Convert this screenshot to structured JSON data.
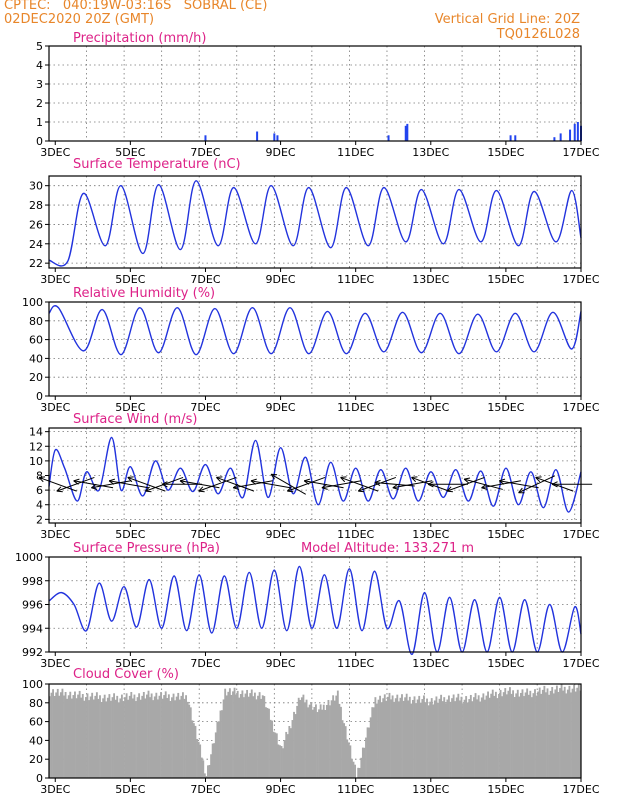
{
  "header": {
    "source_station": "CPTEC:   040:19W-03:16S   SOBRAL (CE)",
    "run_time": "02DEC2020 20Z (GMT)",
    "vertical_grid_note": "Vertical Grid Line: 20Z",
    "model_code": "TQ0126L028"
  },
  "colors": {
    "header": "#e8862a",
    "panel_title": "#dd2288",
    "series_line": "#2233dd",
    "precip_bar": "#2244ee",
    "wind_arrow": "#000000",
    "cloud_fill": "#a8a8a8",
    "grid": "#777777"
  },
  "time_axis": {
    "start": "02DEC 20Z",
    "end": "17DEC",
    "tick_labels": [
      "3DEC",
      "5DEC",
      "7DEC",
      "9DEC",
      "11DEC",
      "13DEC",
      "15DEC",
      "17DEC"
    ]
  },
  "chart_data": [
    {
      "type": "bar",
      "title": "Precipitation (mm/h)",
      "ylim": [
        0,
        5
      ],
      "yticks": [
        0,
        1,
        2,
        3,
        4,
        5
      ],
      "grid": true,
      "x": [
        "7DEC 00Z",
        "8DEC 09Z",
        "8DEC 20Z",
        "8DEC 22Z",
        "11DEC 21Z",
        "12DEC 08Z",
        "12DEC 09Z",
        "15DEC 03Z",
        "15DEC 06Z",
        "16DEC 07Z",
        "16DEC 11Z",
        "16DEC 17Z",
        "16DEC 20Z",
        "16DEC 22Z",
        "17DEC 00Z"
      ],
      "values": [
        0.3,
        0.5,
        0.4,
        0.3,
        0.3,
        0.8,
        0.9,
        0.3,
        0.3,
        0.2,
        0.4,
        0.6,
        0.9,
        1.0,
        0.8
      ]
    },
    {
      "type": "line",
      "title": "Surface Temperature (nC)",
      "ylim": [
        21.5,
        31
      ],
      "yticks": [
        22,
        24,
        26,
        28,
        30
      ],
      "grid": true,
      "series": [
        {
          "x": [
            "02DEC 20Z",
            "03DEC 08Z",
            "03DEC 18Z",
            "04DEC 08Z",
            "04DEC 18Z",
            "05DEC 08Z",
            "05DEC 18Z",
            "06DEC 08Z",
            "06DEC 18Z",
            "07DEC 08Z",
            "07DEC 18Z",
            "08DEC 08Z",
            "08DEC 18Z",
            "09DEC 08Z",
            "09DEC 18Z",
            "10DEC 08Z",
            "10DEC 18Z",
            "11DEC 08Z",
            "11DEC 18Z",
            "12DEC 08Z",
            "12DEC 18Z",
            "13DEC 08Z",
            "13DEC 18Z",
            "14DEC 08Z",
            "14DEC 18Z",
            "15DEC 08Z",
            "15DEC 18Z",
            "16DEC 08Z",
            "16DEC 18Z",
            "17DEC 00Z"
          ],
          "values": [
            22.3,
            22.2,
            29.2,
            23.8,
            30.0,
            23.0,
            30.1,
            23.4,
            30.5,
            23.8,
            29.8,
            24.0,
            30.0,
            23.8,
            29.8,
            23.6,
            29.8,
            23.8,
            29.8,
            24.2,
            29.6,
            24.0,
            29.6,
            24.2,
            29.5,
            23.8,
            29.4,
            24.2,
            29.5,
            24.6
          ]
        }
      ]
    },
    {
      "type": "line",
      "title": "Relative Humidity (%)",
      "ylim": [
        0,
        100
      ],
      "yticks": [
        0,
        20,
        40,
        60,
        80,
        100
      ],
      "grid": true,
      "series": [
        {
          "x": [
            "02DEC 20Z",
            "03DEC 02Z",
            "03DEC 18Z",
            "04DEC 06Z",
            "04DEC 18Z",
            "05DEC 06Z",
            "05DEC 18Z",
            "06DEC 06Z",
            "06DEC 18Z",
            "07DEC 06Z",
            "07DEC 18Z",
            "08DEC 06Z",
            "08DEC 18Z",
            "09DEC 06Z",
            "09DEC 18Z",
            "10DEC 06Z",
            "10DEC 18Z",
            "11DEC 06Z",
            "11DEC 18Z",
            "12DEC 06Z",
            "12DEC 18Z",
            "13DEC 06Z",
            "13DEC 18Z",
            "14DEC 06Z",
            "14DEC 18Z",
            "15DEC 06Z",
            "15DEC 18Z",
            "16DEC 06Z",
            "16DEC 18Z",
            "17DEC 00Z"
          ],
          "values": [
            88,
            94,
            48,
            92,
            44,
            94,
            46,
            94,
            44,
            93,
            45,
            94,
            45,
            94,
            45,
            90,
            45,
            88,
            47,
            89,
            46,
            88,
            45,
            87,
            47,
            88,
            47,
            89,
            50,
            90
          ]
        }
      ]
    },
    {
      "type": "line",
      "title": "Surface Wind (m/s)",
      "ylim": [
        1.5,
        14.5
      ],
      "yticks": [
        2,
        4,
        6,
        8,
        10,
        12,
        14
      ],
      "grid": true,
      "series": [
        {
          "x": [
            "02DEC 20Z",
            "03DEC 00Z",
            "03DEC 06Z",
            "03DEC 14Z",
            "03DEC 20Z",
            "04DEC 04Z",
            "04DEC 12Z",
            "04DEC 18Z",
            "05DEC 00Z",
            "05DEC 08Z",
            "05DEC 16Z",
            "06DEC 00Z",
            "06DEC 08Z",
            "06DEC 16Z",
            "07DEC 00Z",
            "07DEC 08Z",
            "07DEC 16Z",
            "08DEC 00Z",
            "08DEC 08Z",
            "08DEC 16Z",
            "09DEC 00Z",
            "09DEC 08Z",
            "09DEC 16Z",
            "10DEC 00Z",
            "10DEC 08Z",
            "10DEC 16Z",
            "11DEC 00Z",
            "11DEC 08Z",
            "11DEC 16Z",
            "12DEC 00Z",
            "12DEC 08Z",
            "12DEC 16Z",
            "13DEC 00Z",
            "13DEC 08Z",
            "13DEC 16Z",
            "14DEC 00Z",
            "14DEC 08Z",
            "14DEC 16Z",
            "15DEC 00Z",
            "15DEC 08Z",
            "15DEC 16Z",
            "16DEC 00Z",
            "16DEC 08Z",
            "16DEC 16Z",
            "17DEC 00Z"
          ],
          "values": [
            6.5,
            11.5,
            9.0,
            4.5,
            8.5,
            6.0,
            13.2,
            6.0,
            9.2,
            5.2,
            10.0,
            6.0,
            9.0,
            5.8,
            9.5,
            5.5,
            9.0,
            5.0,
            12.8,
            5.0,
            11.8,
            5.5,
            10.5,
            4.0,
            9.8,
            4.5,
            9.0,
            4.5,
            8.8,
            4.8,
            9.0,
            4.5,
            8.5,
            5.0,
            8.8,
            4.5,
            8.6,
            3.8,
            9.0,
            4.0,
            8.5,
            3.6,
            8.8,
            3.0,
            8.5
          ]
        }
      ],
      "wind_arrows_deg_from_east_ccw": [
        160,
        200,
        170,
        190,
        170,
        160,
        200,
        180,
        170,
        200,
        160,
        190,
        170,
        150,
        200,
        170,
        190,
        160,
        200,
        175,
        190,
        160,
        180,
        200,
        165,
        190,
        170,
        205,
        160,
        180
      ]
    },
    {
      "type": "line",
      "title": "Surface Pressure (hPa)",
      "annotation": "Model Altitude: 133.271  m",
      "ylim": [
        992,
        1000
      ],
      "yticks": [
        992,
        994,
        996,
        998,
        1000
      ],
      "grid": true,
      "series": [
        {
          "x": [
            "02DEC 20Z",
            "03DEC 04Z",
            "03DEC 12Z",
            "03DEC 20Z",
            "04DEC 04Z",
            "04DEC 12Z",
            "04DEC 20Z",
            "05DEC 04Z",
            "05DEC 12Z",
            "05DEC 20Z",
            "06DEC 04Z",
            "06DEC 12Z",
            "06DEC 20Z",
            "07DEC 04Z",
            "07DEC 12Z",
            "07DEC 20Z",
            "08DEC 04Z",
            "08DEC 12Z",
            "08DEC 20Z",
            "09DEC 04Z",
            "09DEC 12Z",
            "09DEC 20Z",
            "10DEC 04Z",
            "10DEC 12Z",
            "10DEC 20Z",
            "11DEC 04Z",
            "11DEC 12Z",
            "11DEC 20Z",
            "12DEC 04Z",
            "12DEC 12Z",
            "12DEC 20Z",
            "13DEC 04Z",
            "13DEC 12Z",
            "13DEC 20Z",
            "14DEC 04Z",
            "14DEC 12Z",
            "14DEC 20Z",
            "15DEC 04Z",
            "15DEC 12Z",
            "15DEC 20Z",
            "16DEC 04Z",
            "16DEC 12Z",
            "16DEC 20Z",
            "17DEC 00Z"
          ],
          "values": [
            996.3,
            997.0,
            996.0,
            993.8,
            997.8,
            994.6,
            997.5,
            994.1,
            998.1,
            994.0,
            998.4,
            993.8,
            998.5,
            993.6,
            998.4,
            994.0,
            998.7,
            994.0,
            998.9,
            993.8,
            999.2,
            994.0,
            998.5,
            994.0,
            999.0,
            993.8,
            998.8,
            994.0,
            996.3,
            991.8,
            997.0,
            992.0,
            996.6,
            992.0,
            996.4,
            992.0,
            996.6,
            992.0,
            996.4,
            992.0,
            996.0,
            992.0,
            995.8,
            993.5
          ]
        }
      ]
    },
    {
      "type": "area",
      "title": "Cloud Cover (%)",
      "ylim": [
        0,
        100
      ],
      "yticks": [
        0,
        20,
        40,
        60,
        80,
        100
      ],
      "grid": true,
      "x": [
        "02DEC 20Z",
        "03DEC 12Z",
        "04DEC 12Z",
        "05DEC 12Z",
        "06DEC 12Z",
        "07DEC 00Z",
        "07DEC 12Z",
        "08DEC 12Z",
        "09DEC 00Z",
        "09DEC 12Z",
        "10DEC 00Z",
        "10DEC 12Z",
        "11DEC 00Z",
        "11DEC 12Z",
        "12DEC 00Z",
        "12DEC 12Z",
        "13DEC 00Z",
        "13DEC 12Z",
        "14DEC 00Z",
        "14DEC 12Z",
        "15DEC 00Z",
        "15DEC 12Z",
        "16DEC 00Z",
        "16DEC 12Z",
        "17DEC 00Z"
      ],
      "values": [
        92,
        88,
        85,
        88,
        86,
        3,
        92,
        88,
        30,
        86,
        72,
        88,
        2,
        84,
        86,
        84,
        82,
        85,
        84,
        88,
        92,
        90,
        93,
        95,
        95
      ]
    }
  ]
}
